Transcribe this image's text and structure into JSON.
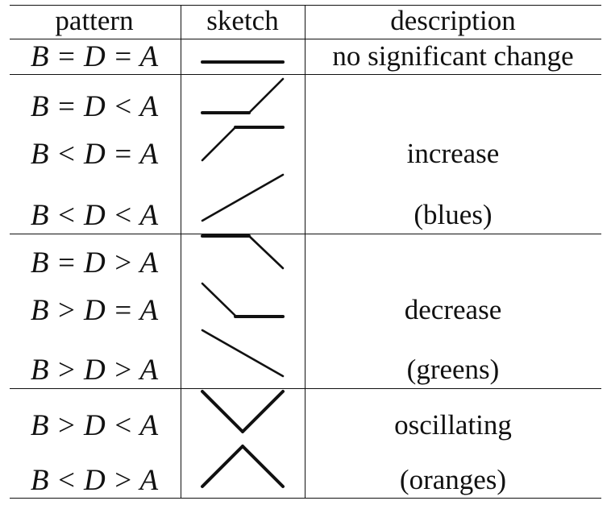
{
  "headers": {
    "pattern": "pattern",
    "sketch": "sketch",
    "description": "description"
  },
  "rows": [
    {
      "pattern": "B = D = A",
      "sketch_shape": "flat"
    },
    {
      "pattern": "B = D < A",
      "sketch_shape": "flat-then-rise"
    },
    {
      "pattern": "B < D = A",
      "sketch_shape": "rise-then-flat"
    },
    {
      "pattern": "B < D < A",
      "sketch_shape": "steady-rise"
    },
    {
      "pattern": "B = D > A",
      "sketch_shape": "flat-then-fall"
    },
    {
      "pattern": "B > D = A",
      "sketch_shape": "fall-then-flat"
    },
    {
      "pattern": "B > D > A",
      "sketch_shape": "steady-fall"
    },
    {
      "pattern": "B > D < A",
      "sketch_shape": "valley"
    },
    {
      "pattern": "B < D > A",
      "sketch_shape": "peak"
    }
  ],
  "groups": {
    "none": {
      "label": "no significant change"
    },
    "increase": {
      "label": "increase",
      "color_name": "(blues)"
    },
    "decrease": {
      "label": "decrease",
      "color_name": "(greens)"
    },
    "oscillating": {
      "label": "oscillating",
      "color_name": "(oranges)"
    }
  }
}
